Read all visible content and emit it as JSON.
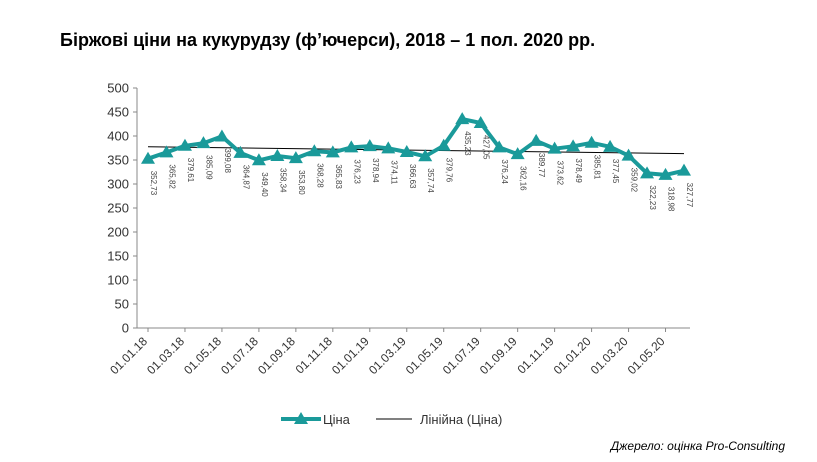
{
  "title": "Біржові ціни на кукурудзу (ф’ючерси), 2018 – 1 пол. 2020 рр.",
  "source": "Джерело: оцінка Pro-Consulting",
  "colors": {
    "series": "#1a9a9a",
    "trend": "#000000",
    "axis": "#888888"
  },
  "chart_data": {
    "type": "line",
    "title": "Біржові ціни на кукурудзу (ф’ючерси), 2018 – 1 пол. 2020 рр.",
    "xlabel": "",
    "ylabel": "",
    "ylim": [
      0,
      500
    ],
    "yticks": [
      0,
      50,
      100,
      150,
      200,
      250,
      300,
      350,
      400,
      450,
      500
    ],
    "x_tick_labels": [
      "01.01.18",
      "01.03.18",
      "01.05.18",
      "01.07.18",
      "01.09.18",
      "01.11.18",
      "01.01.19",
      "01.03.19",
      "01.05.19",
      "01.07.19",
      "01.09.19",
      "01.11.19",
      "01.01.20",
      "01.03.20",
      "01.05.20"
    ],
    "grid": false,
    "legend_position": "bottom",
    "series": [
      {
        "name": "Ціна",
        "values": [
          352.73,
          365.82,
          379.61,
          385.09,
          399.08,
          364.87,
          349.4,
          358.34,
          353.8,
          368.28,
          365.83,
          376.23,
          378.94,
          374.11,
          366.63,
          357.74,
          379.76,
          435.23,
          427.05,
          376.24,
          362.16,
          389.77,
          373.62,
          378.49,
          385.81,
          377.45,
          359.02,
          322.23,
          318.98,
          327.77
        ],
        "labels": [
          "352,73",
          "365,82",
          "379,61",
          "385,09",
          "399,08",
          "364,87",
          "349,40",
          "358,34",
          "353,80",
          "368,28",
          "365,83",
          "376,23",
          "378,94",
          "374,11",
          "366,63",
          "357,74",
          "379,76",
          "435,23",
          "427,05",
          "376,24",
          "362,16",
          "389,77",
          "373,62",
          "378,49",
          "385,81",
          "377,45",
          "359,02",
          "322,23",
          "318,98",
          "327,77"
        ]
      },
      {
        "name": "Лінійна (Ціна)",
        "trendline": true
      }
    ]
  }
}
